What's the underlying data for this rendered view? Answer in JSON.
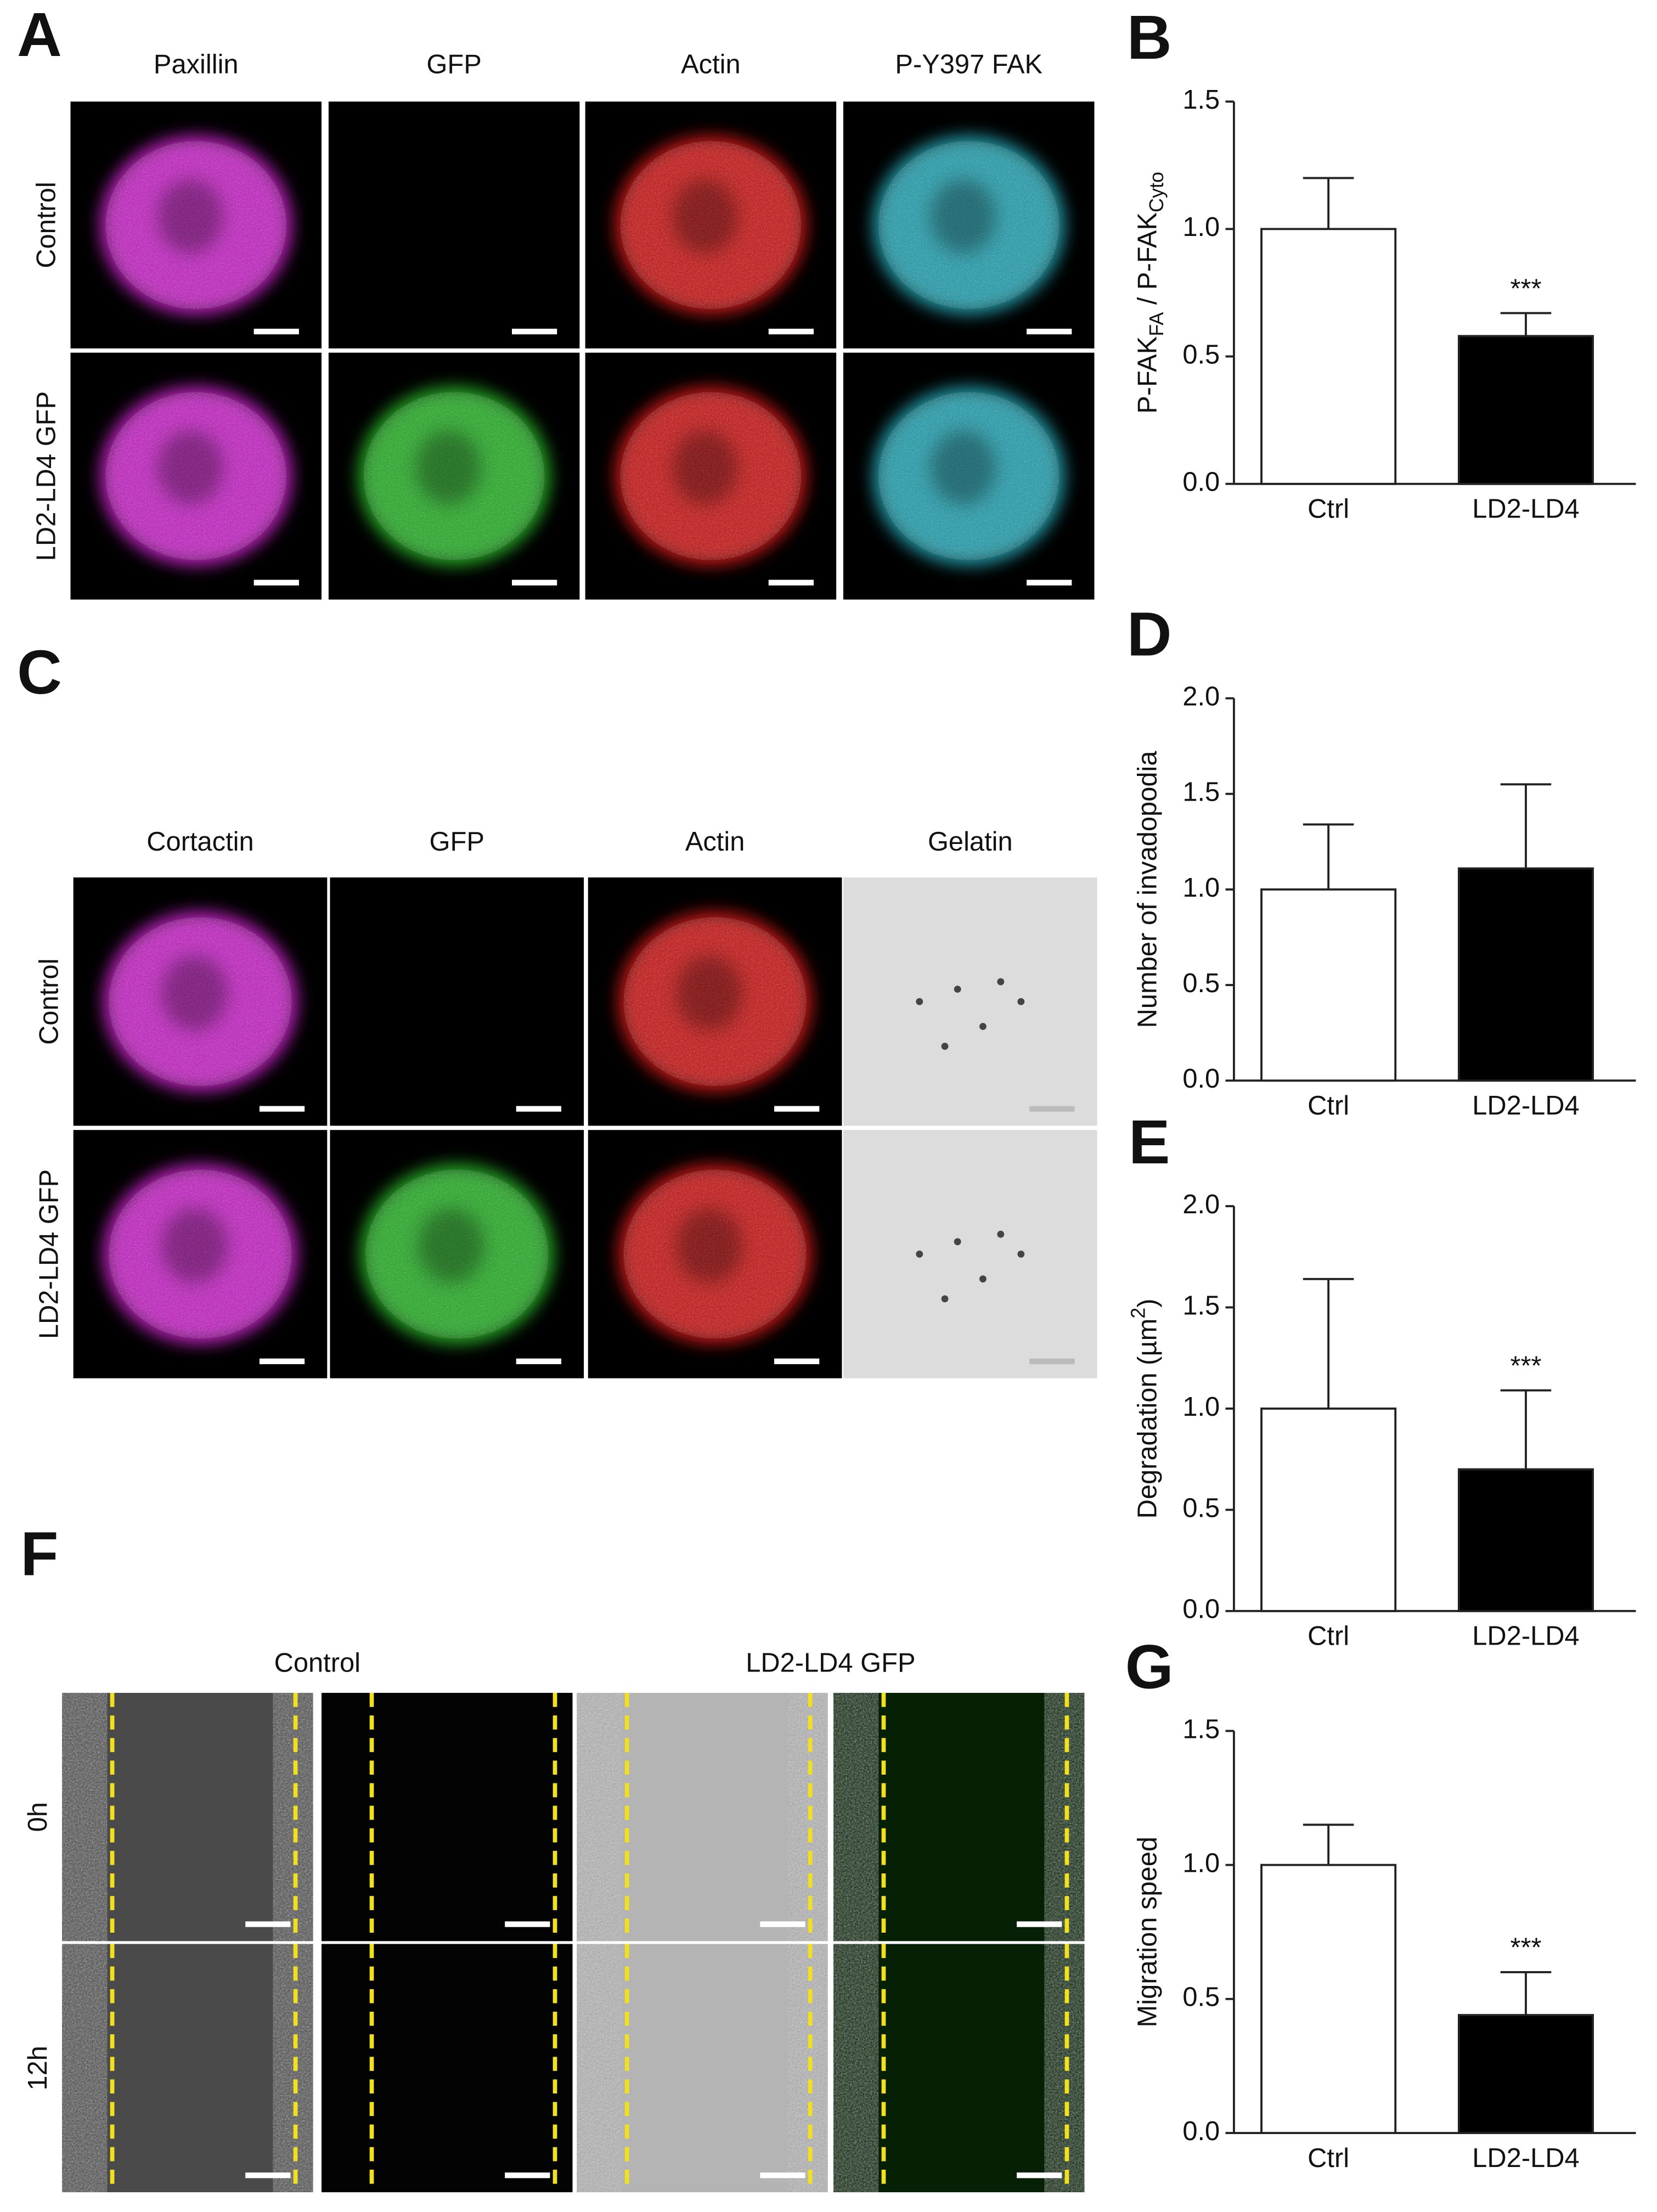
{
  "panels": [
    {
      "letter": "A",
      "columns": [
        "Paxillin",
        "GFP",
        "Actin",
        "P-Y397 FAK"
      ],
      "rows": [
        "Control",
        "LD2-LD4 GFP"
      ]
    },
    {
      "letter": "C",
      "columns": [
        "Cortactin",
        "GFP",
        "Actin",
        "Gelatin"
      ],
      "rows": [
        "Control",
        "LD2-LD4 GFP"
      ]
    },
    {
      "letter": "F",
      "groups": [
        "Control",
        "LD2-LD4 GFP"
      ],
      "rows": [
        "0h",
        "12h"
      ]
    }
  ],
  "chart_data": [
    {
      "type": "bar",
      "panel": "B",
      "ylabel": [
        "P-FAK",
        "FA",
        " / P-FAK",
        "Cyto"
      ],
      "ylabel_script": "sub",
      "categories": [
        "Ctrl",
        "LD2-LD4"
      ],
      "values": [
        1.0,
        0.58
      ],
      "errors": [
        0.2,
        0.09
      ],
      "colors": [
        "#ffffff",
        "#000000"
      ],
      "significance": [
        null,
        "***"
      ],
      "ylim": [
        0,
        1.5
      ],
      "yticks": [
        {
          "value": 0,
          "label": "0.0"
        },
        {
          "value": 0.5,
          "label": "0.5"
        },
        {
          "value": 1,
          "label": "1.0"
        },
        {
          "value": 1.5,
          "label": "1.5"
        }
      ]
    },
    {
      "type": "bar",
      "panel": "D",
      "ylabel": "Number of invadopodia",
      "categories": [
        "Ctrl",
        "LD2-LD4"
      ],
      "values": [
        1.0,
        1.11
      ],
      "errors": [
        0.34,
        0.44
      ],
      "colors": [
        "#ffffff",
        "#000000"
      ],
      "ylim": [
        0,
        2
      ],
      "yticks": [
        {
          "value": 0,
          "label": "0.0"
        },
        {
          "value": 0.5,
          "label": "0.5"
        },
        {
          "value": 1,
          "label": "1.0"
        },
        {
          "value": 1.5,
          "label": "1.5"
        },
        {
          "value": 2,
          "label": "2.0"
        }
      ]
    },
    {
      "type": "bar",
      "panel": "E",
      "ylabel": [
        "Degradation (µm",
        "2",
        ")"
      ],
      "ylabel_script": "sup",
      "categories": [
        "Ctrl",
        "LD2-LD4"
      ],
      "values": [
        1.0,
        0.7
      ],
      "errors": [
        0.64,
        0.39
      ],
      "colors": [
        "#ffffff",
        "#000000"
      ],
      "significance": [
        null,
        "***"
      ],
      "ylim": [
        0,
        2
      ],
      "yticks": [
        {
          "value": 0,
          "label": "0.0"
        },
        {
          "value": 0.5,
          "label": "0.5"
        },
        {
          "value": 1,
          "label": "1.0"
        },
        {
          "value": 1.5,
          "label": "1.5"
        },
        {
          "value": 2,
          "label": "2.0"
        }
      ]
    },
    {
      "type": "bar",
      "panel": "G",
      "ylabel": "Migration speed",
      "categories": [
        "Ctrl",
        "LD2-LD4"
      ],
      "values": [
        1.0,
        0.44
      ],
      "errors": [
        0.15,
        0.16
      ],
      "colors": [
        "#ffffff",
        "#000000"
      ],
      "significance": [
        null,
        "***"
      ],
      "ylim": [
        0,
        1.5
      ],
      "yticks": [
        {
          "value": 0,
          "label": "0.0"
        },
        {
          "value": 0.5,
          "label": "0.5"
        },
        {
          "value": 1,
          "label": "1.0"
        },
        {
          "value": 1.5,
          "label": "1.5"
        }
      ]
    }
  ]
}
